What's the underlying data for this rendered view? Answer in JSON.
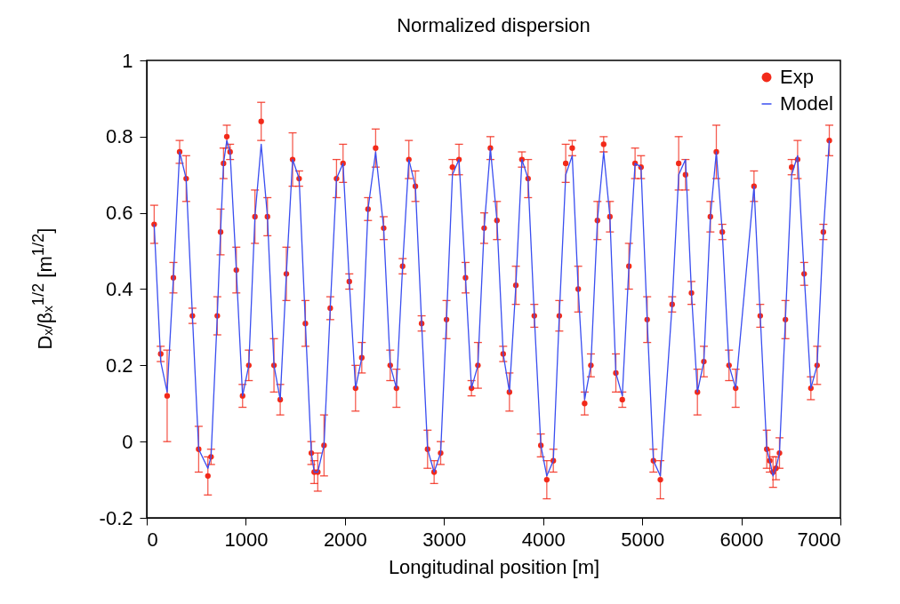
{
  "chart_data": {
    "type": "scatter",
    "title": "Normalized dispersion",
    "xlabel": "Longitudinal position [m]",
    "ylabel": "Dₓ/βₓ$^{1/2}$ [m$^{1/2}$]",
    "x": [
      75,
      141,
      206,
      269,
      332,
      398,
      461,
      524,
      617,
      649,
      712,
      745,
      775,
      808,
      841,
      904,
      967,
      1030,
      1092,
      1155,
      1218,
      1284,
      1347,
      1409,
      1472,
      1538,
      1601,
      1661,
      1690,
      1726,
      1789,
      1852,
      1915,
      1981,
      2044,
      2107,
      2170,
      2233,
      2310,
      2391,
      2457,
      2520,
      2582,
      2645,
      2711,
      2774,
      2834,
      2900,
      2966,
      3025,
      3085,
      3151,
      3217,
      3277,
      3342,
      3405,
      3468,
      3534,
      3597,
      3660,
      3725,
      3786,
      3848,
      3911,
      3977,
      4037,
      4103,
      4163,
      4228,
      4294,
      4354,
      4419,
      4482,
      4548,
      4611,
      4674,
      4734,
      4799,
      4866,
      4928,
      4988,
      5050,
      5113,
      5183,
      5302,
      5368,
      5437,
      5497,
      5557,
      5622,
      5688,
      5748,
      5808,
      5876,
      5943,
      6128,
      6191,
      6257,
      6287,
      6320,
      6350,
      6385,
      6445,
      6508,
      6568,
      6634,
      6702,
      6765,
      6828,
      6888
    ],
    "series": [
      {
        "name": "Exp",
        "marker": "circle",
        "color": "#f22a1a",
        "values": [
          0.57,
          0.23,
          0.12,
          0.43,
          0.76,
          0.69,
          0.33,
          -0.02,
          -0.09,
          -0.04,
          0.33,
          0.55,
          0.73,
          0.8,
          0.76,
          0.45,
          0.12,
          0.2,
          0.59,
          0.84,
          0.59,
          0.2,
          0.11,
          0.44,
          0.74,
          0.69,
          0.31,
          -0.03,
          -0.08,
          -0.08,
          -0.01,
          0.35,
          0.69,
          0.73,
          0.42,
          0.14,
          0.22,
          0.61,
          0.77,
          0.56,
          0.2,
          0.14,
          0.46,
          0.74,
          0.67,
          0.31,
          -0.02,
          -0.08,
          -0.03,
          0.32,
          0.72,
          0.74,
          0.43,
          0.14,
          0.2,
          0.56,
          0.77,
          0.58,
          0.23,
          0.13,
          0.41,
          0.74,
          0.69,
          0.33,
          -0.01,
          -0.1,
          -0.05,
          0.33,
          0.73,
          0.77,
          0.4,
          0.1,
          0.2,
          0.58,
          0.78,
          0.59,
          0.18,
          0.11,
          0.46,
          0.73,
          0.72,
          0.32,
          -0.05,
          -0.1,
          0.36,
          0.73,
          0.7,
          0.39,
          0.13,
          0.21,
          0.59,
          0.76,
          0.55,
          0.2,
          0.14,
          0.67,
          0.33,
          -0.02,
          -0.05,
          -0.08,
          -0.07,
          -0.03,
          0.32,
          0.72,
          0.74,
          0.44,
          0.14,
          0.2,
          0.55,
          0.79
        ],
        "errors": [
          0.05,
          0.02,
          0.12,
          0.04,
          0.03,
          0.06,
          0.02,
          0.06,
          0.05,
          0.02,
          0.05,
          0.06,
          0.04,
          0.03,
          0.02,
          0.06,
          0.03,
          0.04,
          0.07,
          0.05,
          0.05,
          0.07,
          0.04,
          0.07,
          0.07,
          0.02,
          0.06,
          0.03,
          0.03,
          0.05,
          0.08,
          0.03,
          0.05,
          0.05,
          0.02,
          0.06,
          0.04,
          0.03,
          0.05,
          0.03,
          0.04,
          0.05,
          0.02,
          0.05,
          0.04,
          0.02,
          0.05,
          0.03,
          0.03,
          0.05,
          0.02,
          0.04,
          0.04,
          0.02,
          0.06,
          0.04,
          0.03,
          0.05,
          0.02,
          0.05,
          0.05,
          0.02,
          0.05,
          0.03,
          0.03,
          0.05,
          0.03,
          0.04,
          0.05,
          0.02,
          0.06,
          0.03,
          0.03,
          0.05,
          0.02,
          0.04,
          0.05,
          0.02,
          0.06,
          0.04,
          0.03,
          0.06,
          0.03,
          0.05,
          0.02,
          0.07,
          0.04,
          0.03,
          0.06,
          0.04,
          0.04,
          0.07,
          0.02,
          0.04,
          0.05,
          0.04,
          0.03,
          0.05,
          0.03,
          0.04,
          0.03,
          0.04,
          0.05,
          0.02,
          0.05,
          0.03,
          0.03,
          0.05,
          0.02,
          0.04
        ]
      },
      {
        "name": "Model",
        "type": "line",
        "color": "#3a4ef0",
        "values": [
          0.57,
          0.21,
          0.13,
          0.43,
          0.76,
          0.69,
          0.33,
          -0.02,
          -0.07,
          -0.04,
          0.33,
          0.55,
          0.73,
          0.79,
          0.76,
          0.45,
          0.12,
          0.2,
          0.59,
          0.78,
          0.59,
          0.2,
          0.11,
          0.44,
          0.74,
          0.69,
          0.31,
          -0.03,
          -0.08,
          -0.08,
          -0.01,
          0.35,
          0.69,
          0.73,
          0.42,
          0.14,
          0.22,
          0.61,
          0.76,
          0.56,
          0.2,
          0.14,
          0.46,
          0.74,
          0.67,
          0.31,
          -0.02,
          -0.08,
          -0.03,
          0.32,
          0.7,
          0.74,
          0.43,
          0.14,
          0.2,
          0.56,
          0.77,
          0.58,
          0.23,
          0.13,
          0.41,
          0.74,
          0.69,
          0.33,
          -0.01,
          -0.09,
          -0.05,
          0.33,
          0.7,
          0.75,
          0.4,
          0.11,
          0.2,
          0.58,
          0.76,
          0.59,
          0.18,
          0.12,
          0.46,
          0.73,
          0.72,
          0.32,
          -0.05,
          -0.09,
          0.36,
          0.7,
          0.74,
          0.39,
          0.13,
          0.21,
          0.59,
          0.76,
          0.55,
          0.2,
          0.14,
          0.67,
          0.33,
          -0.02,
          -0.05,
          -0.09,
          -0.07,
          -0.03,
          0.32,
          0.7,
          0.75,
          0.44,
          0.14,
          0.2,
          0.55,
          0.79
        ]
      }
    ],
    "xlim": [
      0,
      7000
    ],
    "xticks": [
      0,
      1000,
      2000,
      3000,
      4000,
      5000,
      6000,
      7000
    ],
    "ylim": [
      -0.2,
      1
    ],
    "yticks": [
      -0.2,
      0,
      0.2,
      0.4,
      0.6,
      0.8,
      1
    ],
    "legend": "top right",
    "line_style": "solid"
  }
}
